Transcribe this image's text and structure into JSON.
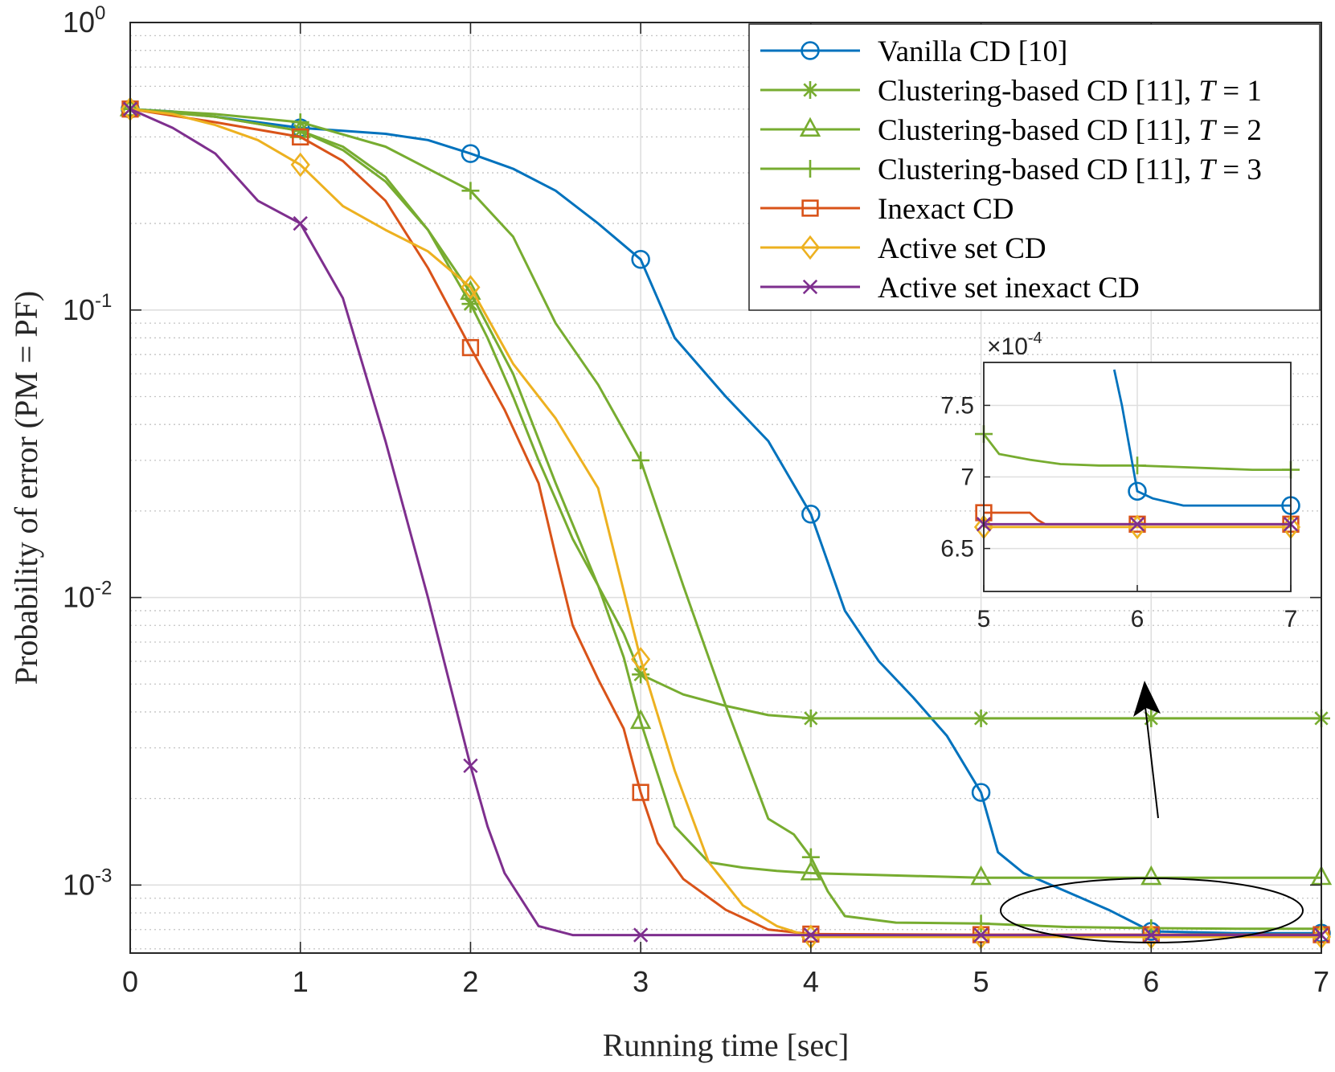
{
  "chart_data": [
    {
      "type": "line",
      "xlabel": "Running time [sec]",
      "ylabel": "Probability of error (PM = PF)",
      "x_scale": "linear",
      "y_scale": "log",
      "xlim": [
        0,
        7
      ],
      "ylim": [
        0.00058,
        1
      ],
      "x_ticks": [
        "0",
        "1",
        "2",
        "3",
        "4",
        "5",
        "6",
        "7"
      ],
      "y_ticks": [
        {
          "base": "10",
          "exp": "0"
        },
        {
          "base": "10",
          "exp": "-1"
        },
        {
          "base": "10",
          "exp": "-2"
        },
        {
          "base": "10",
          "exp": "-3"
        }
      ],
      "grid": true,
      "minor_grid": true,
      "legend_position": "top-right",
      "series": [
        {
          "name": "Vanilla CD [10]",
          "color": "#0072BD",
          "marker": "circle",
          "x": [
            0,
            0.25,
            0.5,
            0.75,
            1,
            1.25,
            1.5,
            1.75,
            2,
            2.25,
            2.5,
            2.75,
            3,
            3.2,
            3.5,
            3.75,
            4,
            4.2,
            4.4,
            4.6,
            4.8,
            5,
            5.1,
            5.25,
            5.5,
            5.75,
            6,
            6.5,
            7
          ],
          "y": [
            0.5,
            0.49,
            0.47,
            0.45,
            0.43,
            0.42,
            0.41,
            0.39,
            0.35,
            0.31,
            0.26,
            0.2,
            0.15,
            0.08,
            0.05,
            0.035,
            0.0195,
            0.009,
            0.006,
            0.0045,
            0.0033,
            0.0021,
            0.0013,
            0.0011,
            0.00095,
            0.00082,
            0.00069,
            0.00068,
            0.00068
          ]
        },
        {
          "name": "Clustering-based CD [11], T = 1",
          "color": "#77AC30",
          "marker": "asterisk",
          "x": [
            0,
            0.5,
            1,
            1.25,
            1.5,
            1.75,
            2,
            2.1,
            2.25,
            2.4,
            2.5,
            2.6,
            2.75,
            2.9,
            3,
            3.25,
            3.5,
            3.75,
            4,
            5,
            6,
            7
          ],
          "y": [
            0.5,
            0.47,
            0.42,
            0.36,
            0.28,
            0.19,
            0.105,
            0.08,
            0.05,
            0.03,
            0.022,
            0.016,
            0.011,
            0.0075,
            0.0054,
            0.0046,
            0.0042,
            0.0039,
            0.0038,
            0.0038,
            0.0038,
            0.0038
          ]
        },
        {
          "name": "Clustering-based CD [11], T = 2",
          "color": "#77AC30",
          "marker": "triangle",
          "x": [
            0,
            0.5,
            1,
            1.25,
            1.5,
            1.75,
            2,
            2.25,
            2.5,
            2.75,
            2.9,
            3,
            3.2,
            3.4,
            3.6,
            3.8,
            4,
            5,
            6,
            7
          ],
          "y": [
            0.5,
            0.47,
            0.42,
            0.37,
            0.29,
            0.19,
            0.115,
            0.06,
            0.025,
            0.011,
            0.0062,
            0.0037,
            0.0016,
            0.0012,
            0.00115,
            0.00112,
            0.0011,
            0.00106,
            0.00106,
            0.00106
          ]
        },
        {
          "name": "Clustering-based CD [11], T = 3",
          "color": "#77AC30",
          "marker": "plus",
          "x": [
            0,
            0.5,
            1,
            1.5,
            2,
            2.25,
            2.5,
            2.75,
            3,
            3.25,
            3.5,
            3.75,
            3.9,
            4,
            4.1,
            4.2,
            4.5,
            5,
            5.5,
            6,
            6.5,
            7
          ],
          "y": [
            0.5,
            0.48,
            0.45,
            0.37,
            0.26,
            0.18,
            0.09,
            0.055,
            0.03,
            0.011,
            0.0042,
            0.0017,
            0.0015,
            0.00125,
            0.00095,
            0.00078,
            0.00074,
            0.000735,
            0.000715,
            0.000708,
            0.000705,
            0.000705
          ]
        },
        {
          "name": "Inexact CD",
          "color": "#D95319",
          "marker": "square",
          "x": [
            0,
            0.5,
            1,
            1.25,
            1.5,
            1.75,
            2,
            2.2,
            2.4,
            2.5,
            2.6,
            2.75,
            2.9,
            3,
            3.1,
            3.25,
            3.5,
            3.75,
            4,
            5,
            6,
            7
          ],
          "y": [
            0.5,
            0.45,
            0.4,
            0.33,
            0.24,
            0.14,
            0.074,
            0.045,
            0.025,
            0.014,
            0.008,
            0.0052,
            0.0035,
            0.0021,
            0.0014,
            0.00105,
            0.00082,
            0.0007,
            0.000675,
            0.000672,
            0.000672,
            0.000672
          ]
        },
        {
          "name": "Active set CD",
          "color": "#EDB120",
          "marker": "diamond",
          "x": [
            0,
            0.25,
            0.5,
            0.75,
            1,
            1.25,
            1.5,
            1.75,
            2,
            2.25,
            2.5,
            2.75,
            3,
            3.2,
            3.4,
            3.6,
            3.8,
            4,
            5,
            6,
            7
          ],
          "y": [
            0.5,
            0.48,
            0.44,
            0.39,
            0.32,
            0.23,
            0.19,
            0.16,
            0.12,
            0.065,
            0.042,
            0.024,
            0.0061,
            0.0025,
            0.0012,
            0.00085,
            0.00072,
            0.00066,
            0.00066,
            0.00066,
            0.00066
          ]
        },
        {
          "name": "Active set inexact CD",
          "color": "#7E2F8E",
          "marker": "x",
          "x": [
            0,
            0.25,
            0.5,
            0.75,
            1,
            1.25,
            1.5,
            1.75,
            2,
            2.1,
            2.2,
            2.4,
            2.6,
            3,
            4,
            5,
            6,
            7
          ],
          "y": [
            0.5,
            0.43,
            0.35,
            0.24,
            0.2,
            0.11,
            0.035,
            0.01,
            0.0026,
            0.0016,
            0.0011,
            0.00072,
            0.00067,
            0.00067,
            0.00067,
            0.00067,
            0.00067,
            0.00067
          ]
        }
      ],
      "markers_at_x": [
        0,
        1,
        2,
        3,
        4,
        5,
        6,
        7
      ]
    },
    {
      "type": "line",
      "inset": true,
      "xlim": [
        5,
        7
      ],
      "ylim": [
        6.2,
        7.8
      ],
      "x_ticks": [
        "5",
        "6",
        "7"
      ],
      "y_ticks": [
        "6.5",
        "7",
        "7.5"
      ],
      "y_multiplier": {
        "base": "×10",
        "exp": "-4"
      },
      "grid": true,
      "series": [
        {
          "name": "Vanilla CD [10]",
          "color": "#0072BD",
          "marker": "circle",
          "x": [
            5.85,
            5.9,
            5.95,
            6,
            6.1,
            6.3,
            6.5,
            7
          ],
          "y": [
            7.75,
            7.5,
            7.2,
            6.9,
            6.85,
            6.8,
            6.8,
            6.8
          ],
          "marker_x": [
            6,
            7
          ]
        },
        {
          "name": "Clustering-based CD [11], T = 3",
          "color": "#77AC30",
          "marker": "plus",
          "x": [
            5,
            5.1,
            5.3,
            5.5,
            5.75,
            6,
            6.25,
            6.5,
            6.75,
            7
          ],
          "y": [
            7.3,
            7.16,
            7.12,
            7.09,
            7.08,
            7.08,
            7.07,
            7.06,
            7.05,
            7.05
          ],
          "marker_x": [
            5,
            6,
            7
          ]
        },
        {
          "name": "Inexact CD",
          "color": "#D95319",
          "marker": "square",
          "x": [
            5,
            5.3,
            5.35,
            5.4,
            6,
            7
          ],
          "y": [
            6.75,
            6.75,
            6.7,
            6.67,
            6.67,
            6.67
          ],
          "marker_x": [
            5,
            6,
            7
          ]
        },
        {
          "name": "Active set CD",
          "color": "#EDB120",
          "marker": "diamond",
          "x": [
            5,
            6,
            7
          ],
          "y": [
            6.65,
            6.65,
            6.65
          ],
          "marker_x": [
            5,
            6,
            7
          ]
        },
        {
          "name": "Active set inexact CD",
          "color": "#7E2F8E",
          "marker": "x",
          "x": [
            5,
            6,
            7
          ],
          "y": [
            6.67,
            6.67,
            6.67
          ],
          "marker_x": [
            5,
            6,
            7
          ]
        }
      ]
    }
  ]
}
